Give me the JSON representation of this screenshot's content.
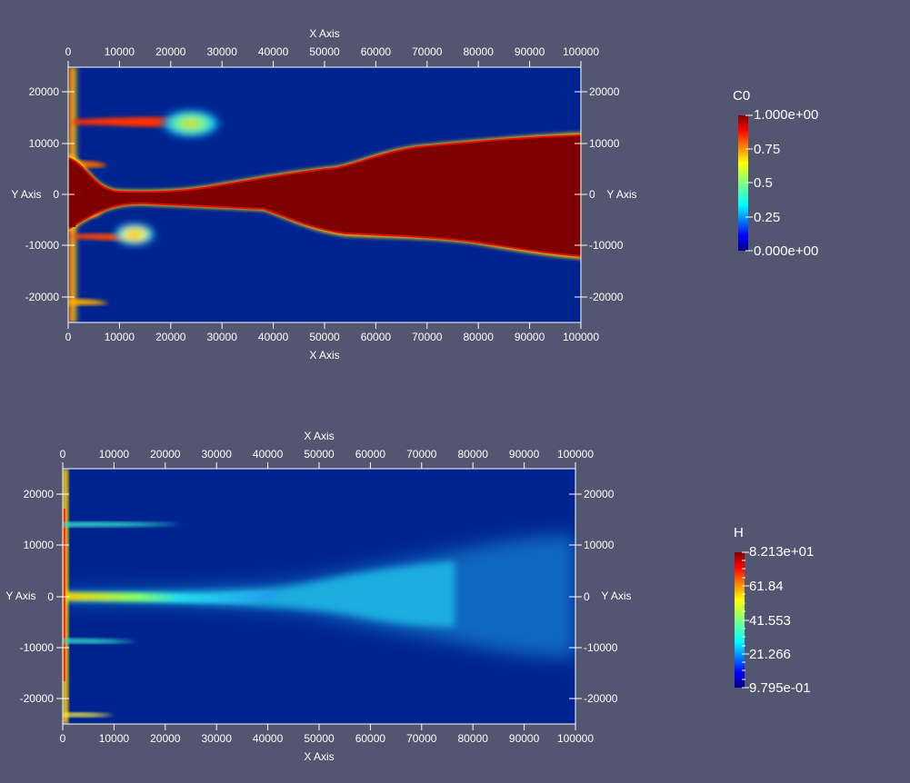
{
  "views": [
    {
      "x_axis_title": "X Axis",
      "y_axis_title": "Y Axis",
      "x_ticks": [
        "0",
        "10000",
        "20000",
        "30000",
        "40000",
        "50000",
        "60000",
        "70000",
        "80000",
        "90000",
        "100000"
      ],
      "y_ticks": [
        "20000",
        "10000",
        "0",
        "-10000",
        "-20000"
      ],
      "colorbar": {
        "title": "C0",
        "labels": [
          "1.000e+00",
          "0.75",
          "0.5",
          "0.25",
          "0.000e+00"
        ],
        "colormap": "jet"
      }
    },
    {
      "x_axis_title": "X Axis",
      "y_axis_title": "Y Axis",
      "x_ticks": [
        "0",
        "10000",
        "20000",
        "30000",
        "40000",
        "50000",
        "60000",
        "70000",
        "80000",
        "90000",
        "100000"
      ],
      "y_ticks": [
        "20000",
        "10000",
        "0",
        "-10000",
        "-20000"
      ],
      "colorbar": {
        "title": "H",
        "labels": [
          "8.213e+01",
          "61.84",
          "41.553",
          "21.266",
          "9.795e-01"
        ],
        "colormap": "jet"
      }
    }
  ],
  "colors": {
    "background": "#525670",
    "axis": "#ffffff",
    "field_background": "#00248f",
    "field_high": "#7f0000"
  }
}
